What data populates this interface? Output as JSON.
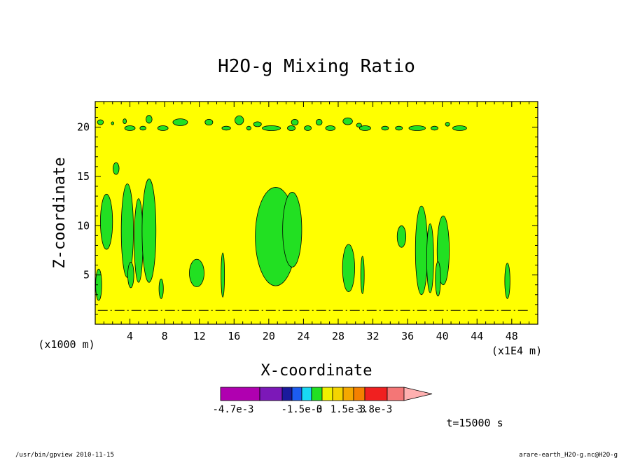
{
  "chart_data": {
    "type": "heatmap",
    "title": "H2O-g Mixing Ratio",
    "xlabel": "X-coordinate",
    "ylabel": "Z-coordinate",
    "x_unit_left": "(x1000 m)",
    "x_unit_right": "(x1E4 m)",
    "xlim": [
      0,
      51
    ],
    "ylim": [
      0,
      22.6
    ],
    "x_ticks": [
      4,
      8,
      12,
      16,
      20,
      24,
      28,
      32,
      36,
      40,
      44,
      48
    ],
    "y_ticks": [
      5,
      10,
      15,
      20
    ],
    "background_color": "#ffff00",
    "grid": false,
    "colorbar": {
      "colors": [
        "#b000b0",
        "#7c18b8",
        "#1a1a9c",
        "#1c5cf0",
        "#18d8f4",
        "#22e022",
        "#f0f000",
        "#f4d400",
        "#f4a800",
        "#f48000",
        "#f02020",
        "#f47676",
        "#ffb0b0"
      ],
      "labels": [
        "-4.7e-3",
        "-1.5e-3",
        "0",
        "1.5e-3",
        "3.8e-3"
      ],
      "label_at_boundary": [
        0,
        4,
        6,
        7,
        10
      ]
    },
    "time_label": "t=15000 s",
    "regions": [
      {
        "value": "green",
        "x": 0.6,
        "z": 20.5,
        "w": 0.7,
        "h": 0.5
      },
      {
        "value": "green",
        "x": 2.0,
        "z": 20.4,
        "w": 0.3,
        "h": 0.3
      },
      {
        "value": "green",
        "x": 3.4,
        "z": 20.6,
        "w": 0.4,
        "h": 0.5
      },
      {
        "value": "green",
        "x": 4.0,
        "z": 19.9,
        "w": 1.2,
        "h": 0.5
      },
      {
        "value": "green",
        "x": 6.2,
        "z": 20.8,
        "w": 0.7,
        "h": 0.8
      },
      {
        "value": "green",
        "x": 5.5,
        "z": 19.9,
        "w": 0.7,
        "h": 0.4
      },
      {
        "value": "green",
        "x": 7.8,
        "z": 19.9,
        "w": 1.2,
        "h": 0.5
      },
      {
        "value": "green",
        "x": 9.8,
        "z": 20.5,
        "w": 1.7,
        "h": 0.7
      },
      {
        "value": "green",
        "x": 13.1,
        "z": 20.5,
        "w": 0.9,
        "h": 0.6
      },
      {
        "value": "green",
        "x": 15.1,
        "z": 19.9,
        "w": 1.0,
        "h": 0.4
      },
      {
        "value": "green",
        "x": 16.6,
        "z": 20.7,
        "w": 1.0,
        "h": 0.9
      },
      {
        "value": "green",
        "x": 17.7,
        "z": 19.9,
        "w": 0.5,
        "h": 0.4
      },
      {
        "value": "green",
        "x": 18.7,
        "z": 20.3,
        "w": 0.9,
        "h": 0.5
      },
      {
        "value": "green",
        "x": 20.3,
        "z": 19.9,
        "w": 2.1,
        "h": 0.5
      },
      {
        "value": "green",
        "x": 22.6,
        "z": 19.9,
        "w": 0.9,
        "h": 0.5
      },
      {
        "value": "green",
        "x": 23.0,
        "z": 20.5,
        "w": 0.8,
        "h": 0.6
      },
      {
        "value": "green",
        "x": 24.5,
        "z": 19.9,
        "w": 0.8,
        "h": 0.5
      },
      {
        "value": "green",
        "x": 25.8,
        "z": 20.5,
        "w": 0.7,
        "h": 0.6
      },
      {
        "value": "green",
        "x": 27.1,
        "z": 19.9,
        "w": 1.1,
        "h": 0.5
      },
      {
        "value": "green",
        "x": 29.1,
        "z": 20.6,
        "w": 1.1,
        "h": 0.7
      },
      {
        "value": "green",
        "x": 30.4,
        "z": 20.2,
        "w": 0.6,
        "h": 0.4
      },
      {
        "value": "green",
        "x": 31.1,
        "z": 19.9,
        "w": 1.3,
        "h": 0.5
      },
      {
        "value": "green",
        "x": 33.4,
        "z": 19.9,
        "w": 0.8,
        "h": 0.4
      },
      {
        "value": "green",
        "x": 35.0,
        "z": 19.9,
        "w": 0.8,
        "h": 0.4
      },
      {
        "value": "green",
        "x": 37.1,
        "z": 19.9,
        "w": 1.9,
        "h": 0.5
      },
      {
        "value": "green",
        "x": 39.1,
        "z": 19.9,
        "w": 0.8,
        "h": 0.4
      },
      {
        "value": "green",
        "x": 40.6,
        "z": 20.3,
        "w": 0.5,
        "h": 0.4
      },
      {
        "value": "green",
        "x": 42.0,
        "z": 19.9,
        "w": 1.6,
        "h": 0.5
      },
      {
        "value": "green",
        "x": 1.3,
        "z": 10.4,
        "w": 1.4,
        "h": 5.6
      },
      {
        "value": "green",
        "x": 2.4,
        "z": 15.8,
        "w": 0.7,
        "h": 1.2
      },
      {
        "value": "green",
        "x": 3.7,
        "z": 9.5,
        "w": 1.4,
        "h": 9.5
      },
      {
        "value": "green",
        "x": 5.0,
        "z": 8.5,
        "w": 1.0,
        "h": 8.5
      },
      {
        "value": "green",
        "x": 6.2,
        "z": 9.5,
        "w": 1.6,
        "h": 10.5
      },
      {
        "value": "green",
        "x": 4.1,
        "z": 5.0,
        "w": 0.7,
        "h": 2.6
      },
      {
        "value": "green",
        "x": 0.4,
        "z": 4.0,
        "w": 0.7,
        "h": 3.2
      },
      {
        "value": "green",
        "x": 7.6,
        "z": 3.6,
        "w": 0.5,
        "h": 2.0
      },
      {
        "value": "green",
        "x": 11.7,
        "z": 5.2,
        "w": 1.7,
        "h": 2.8
      },
      {
        "value": "green",
        "x": 14.7,
        "z": 5.0,
        "w": 0.4,
        "h": 4.5
      },
      {
        "value": "green",
        "x": 20.8,
        "z": 8.9,
        "w": 4.7,
        "h": 10.0
      },
      {
        "value": "green",
        "x": 22.7,
        "z": 9.6,
        "w": 2.2,
        "h": 7.6
      },
      {
        "value": "green",
        "x": 29.2,
        "z": 5.7,
        "w": 1.4,
        "h": 4.8
      },
      {
        "value": "green",
        "x": 30.8,
        "z": 5.0,
        "w": 0.4,
        "h": 3.8
      },
      {
        "value": "green",
        "x": 35.3,
        "z": 8.9,
        "w": 1.0,
        "h": 2.2
      },
      {
        "value": "green",
        "x": 37.6,
        "z": 7.5,
        "w": 1.4,
        "h": 9.0
      },
      {
        "value": "green",
        "x": 38.6,
        "z": 6.7,
        "w": 0.8,
        "h": 7.0
      },
      {
        "value": "green",
        "x": 40.1,
        "z": 7.5,
        "w": 1.4,
        "h": 7.0
      },
      {
        "value": "green",
        "x": 39.5,
        "z": 4.6,
        "w": 0.6,
        "h": 3.5
      },
      {
        "value": "green",
        "x": 47.5,
        "z": 4.4,
        "w": 0.6,
        "h": 3.6
      }
    ]
  },
  "footer": {
    "left": "/usr/bin/gpview  2010-11-15",
    "right": "arare-earth_H2O-g.nc@H2O-g"
  },
  "colors": {
    "contour_fill": "#22e022",
    "contour_line": "#000000"
  }
}
